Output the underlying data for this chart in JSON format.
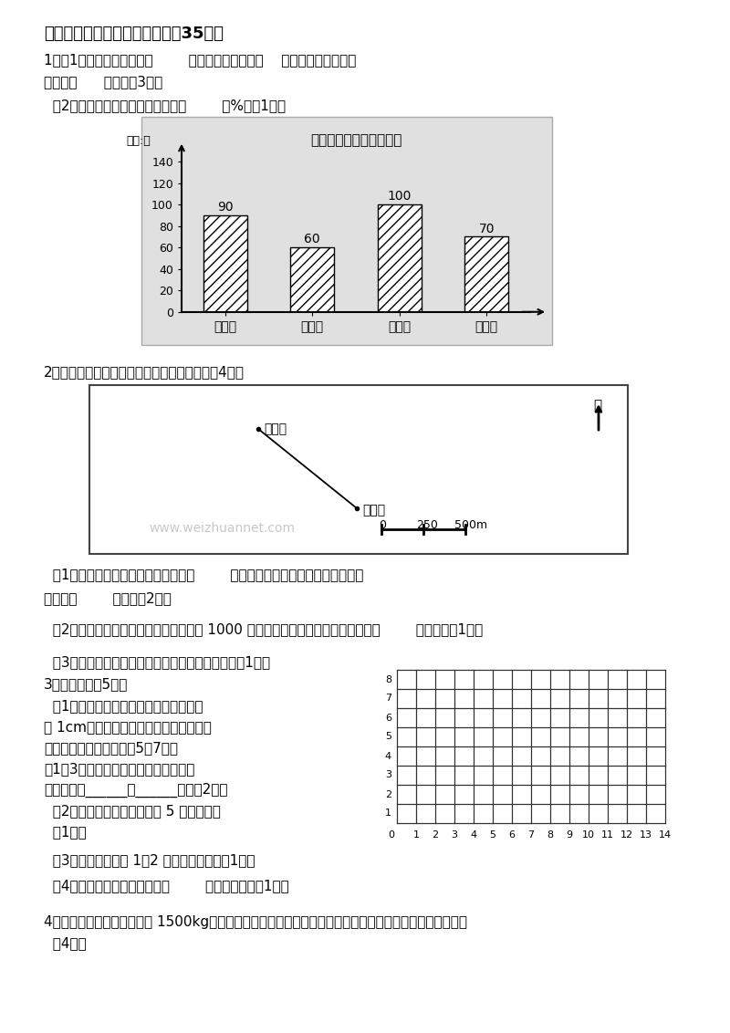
{
  "bg_color": "#ffffff",
  "section_title": "五、实践操作与综合应用。（共35分）",
  "q1_line1": "1、（1）这个工厂一共有（        ）名工人，分成了（    ）个车间，平均每个",
  "q1_line2": "车间有（      ）人。（3分）",
  "q1_2": "  （2）第三车间的人数占总人数的（        ）%。（1分）",
  "bar_title": "某工厂各车间人数统计图",
  "bar_unit": "单位:人",
  "bar_categories": [
    "一车间",
    "二车间",
    "三车间",
    "四车间"
  ],
  "bar_values": [
    90,
    60,
    100,
    70
  ],
  "bar_yticks": [
    0,
    20,
    40,
    60,
    80,
    100,
    120,
    140
  ],
  "q2_title": "2、根据图中提供的信息，完成下面问题。（关4分）",
  "q2_1a": "  （1）陈晨家与汽车站的图上距离是（        ）厉米（结果用整厉米表示），实际",
  "q2_1b": "距离是（        ）米。（2分）",
  "q2_2": "  （2）小明所在学校在汽车站的正西方向 1000 米处，学校与汽车站的图上距离是（        ）厉米。（1分）",
  "q2_3": "  （3）请在上图中画出学校的位置，并标出名称。（1分）",
  "q3_title": "3、操作题。（5分）",
  "q3_1a": "  （1）在下面方格图（每个方格的边长表",
  "q3_1b": "示 1cm）中画一个直角三角形，其中两个",
  "q3_1c": "锐角的顶点分别确定在（5，7）和",
  "q3_1d": "（1，3）的位置上，那么直角的顶点位",
  "q3_1e": "置可以是（______，______）。（2分）",
  "q3_2": "  （2）将这个三角形向右平移 5 格画出来。",
  "q3_2b": "  （1分）",
  "q3_3": "  （3）画出三角形按 1：2 缩小后的图形。（1分）",
  "q3_4": "  （4）第一个三角形的面积是（        ）平方厉米。（1分）",
  "q4": "4、王大爷家去年收了大白菜 1500kg，今年预计比去年增产一成。今年的大白菜总总产量预计是多少千克？",
  "q4b": "  （4分）",
  "bus_label": "汽车站",
  "chen_label": "陈晨家",
  "north_label": "北",
  "watermark": "www.weizhuannet.com"
}
